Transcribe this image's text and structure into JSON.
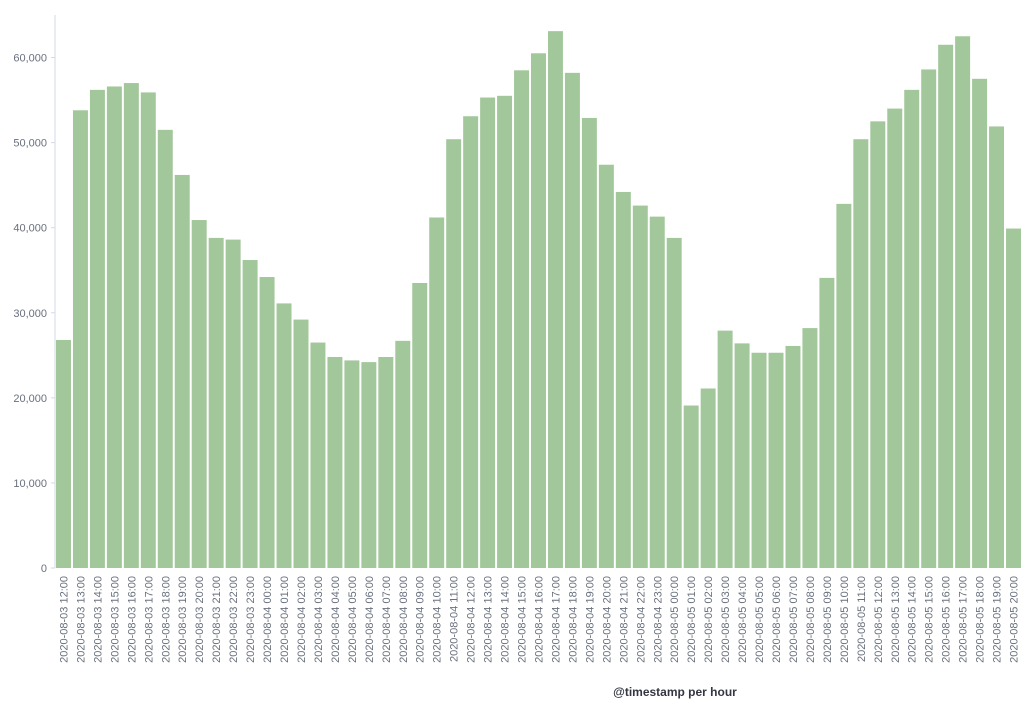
{
  "chart_data": {
    "type": "bar",
    "x_label": "@timestamp per hour",
    "color": "#a2c79a",
    "categories": [
      "2020-08-03 12:00",
      "2020-08-03 13:00",
      "2020-08-03 14:00",
      "2020-08-03 15:00",
      "2020-08-03 16:00",
      "2020-08-03 17:00",
      "2020-08-03 18:00",
      "2020-08-03 19:00",
      "2020-08-03 20:00",
      "2020-08-03 21:00",
      "2020-08-03 22:00",
      "2020-08-03 23:00",
      "2020-08-04 00:00",
      "2020-08-04 01:00",
      "2020-08-04 02:00",
      "2020-08-04 03:00",
      "2020-08-04 04:00",
      "2020-08-04 05:00",
      "2020-08-04 06:00",
      "2020-08-04 07:00",
      "2020-08-04 08:00",
      "2020-08-04 09:00",
      "2020-08-04 10:00",
      "2020-08-04 11:00",
      "2020-08-04 12:00",
      "2020-08-04 13:00",
      "2020-08-04 14:00",
      "2020-08-04 15:00",
      "2020-08-04 16:00",
      "2020-08-04 17:00",
      "2020-08-04 18:00",
      "2020-08-04 19:00",
      "2020-08-04 20:00",
      "2020-08-04 21:00",
      "2020-08-04 22:00",
      "2020-08-04 23:00",
      "2020-08-05 00:00",
      "2020-08-05 01:00",
      "2020-08-05 02:00",
      "2020-08-05 03:00",
      "2020-08-05 04:00",
      "2020-08-05 05:00",
      "2020-08-05 06:00",
      "2020-08-05 07:00",
      "2020-08-05 08:00",
      "2020-08-05 09:00",
      "2020-08-05 10:00",
      "2020-08-05 11:00",
      "2020-08-05 12:00",
      "2020-08-05 13:00",
      "2020-08-05 14:00",
      "2020-08-05 15:00",
      "2020-08-05 16:00",
      "2020-08-05 17:00",
      "2020-08-05 18:00",
      "2020-08-05 19:00",
      "2020-08-05 20:00"
    ],
    "values": [
      26800,
      53800,
      56200,
      56600,
      57000,
      55900,
      51500,
      46200,
      40900,
      38800,
      38600,
      36200,
      34200,
      31100,
      29200,
      26500,
      24800,
      24400,
      24200,
      24800,
      26700,
      33500,
      41200,
      50400,
      53100,
      55300,
      55500,
      58500,
      60500,
      63100,
      58200,
      52900,
      47400,
      44200,
      42600,
      41300,
      38800,
      19100,
      21100,
      27900,
      26400,
      25300,
      25300,
      26100,
      28200,
      34100,
      42800,
      50400,
      52500,
      54000,
      56200,
      58600,
      61500,
      62500,
      57500,
      51900,
      39900
    ],
    "ylim": [
      0,
      65000
    ],
    "yticks": [
      0,
      {
        "value": 10000,
        "label": "10,000"
      },
      {
        "value": 20000,
        "label": "20,000"
      },
      {
        "value": 30000,
        "label": "30,000"
      },
      {
        "value": 40000,
        "label": "40,000"
      },
      {
        "value": 50000,
        "label": "50,000"
      },
      {
        "value": 60000,
        "label": "60,000"
      }
    ]
  }
}
